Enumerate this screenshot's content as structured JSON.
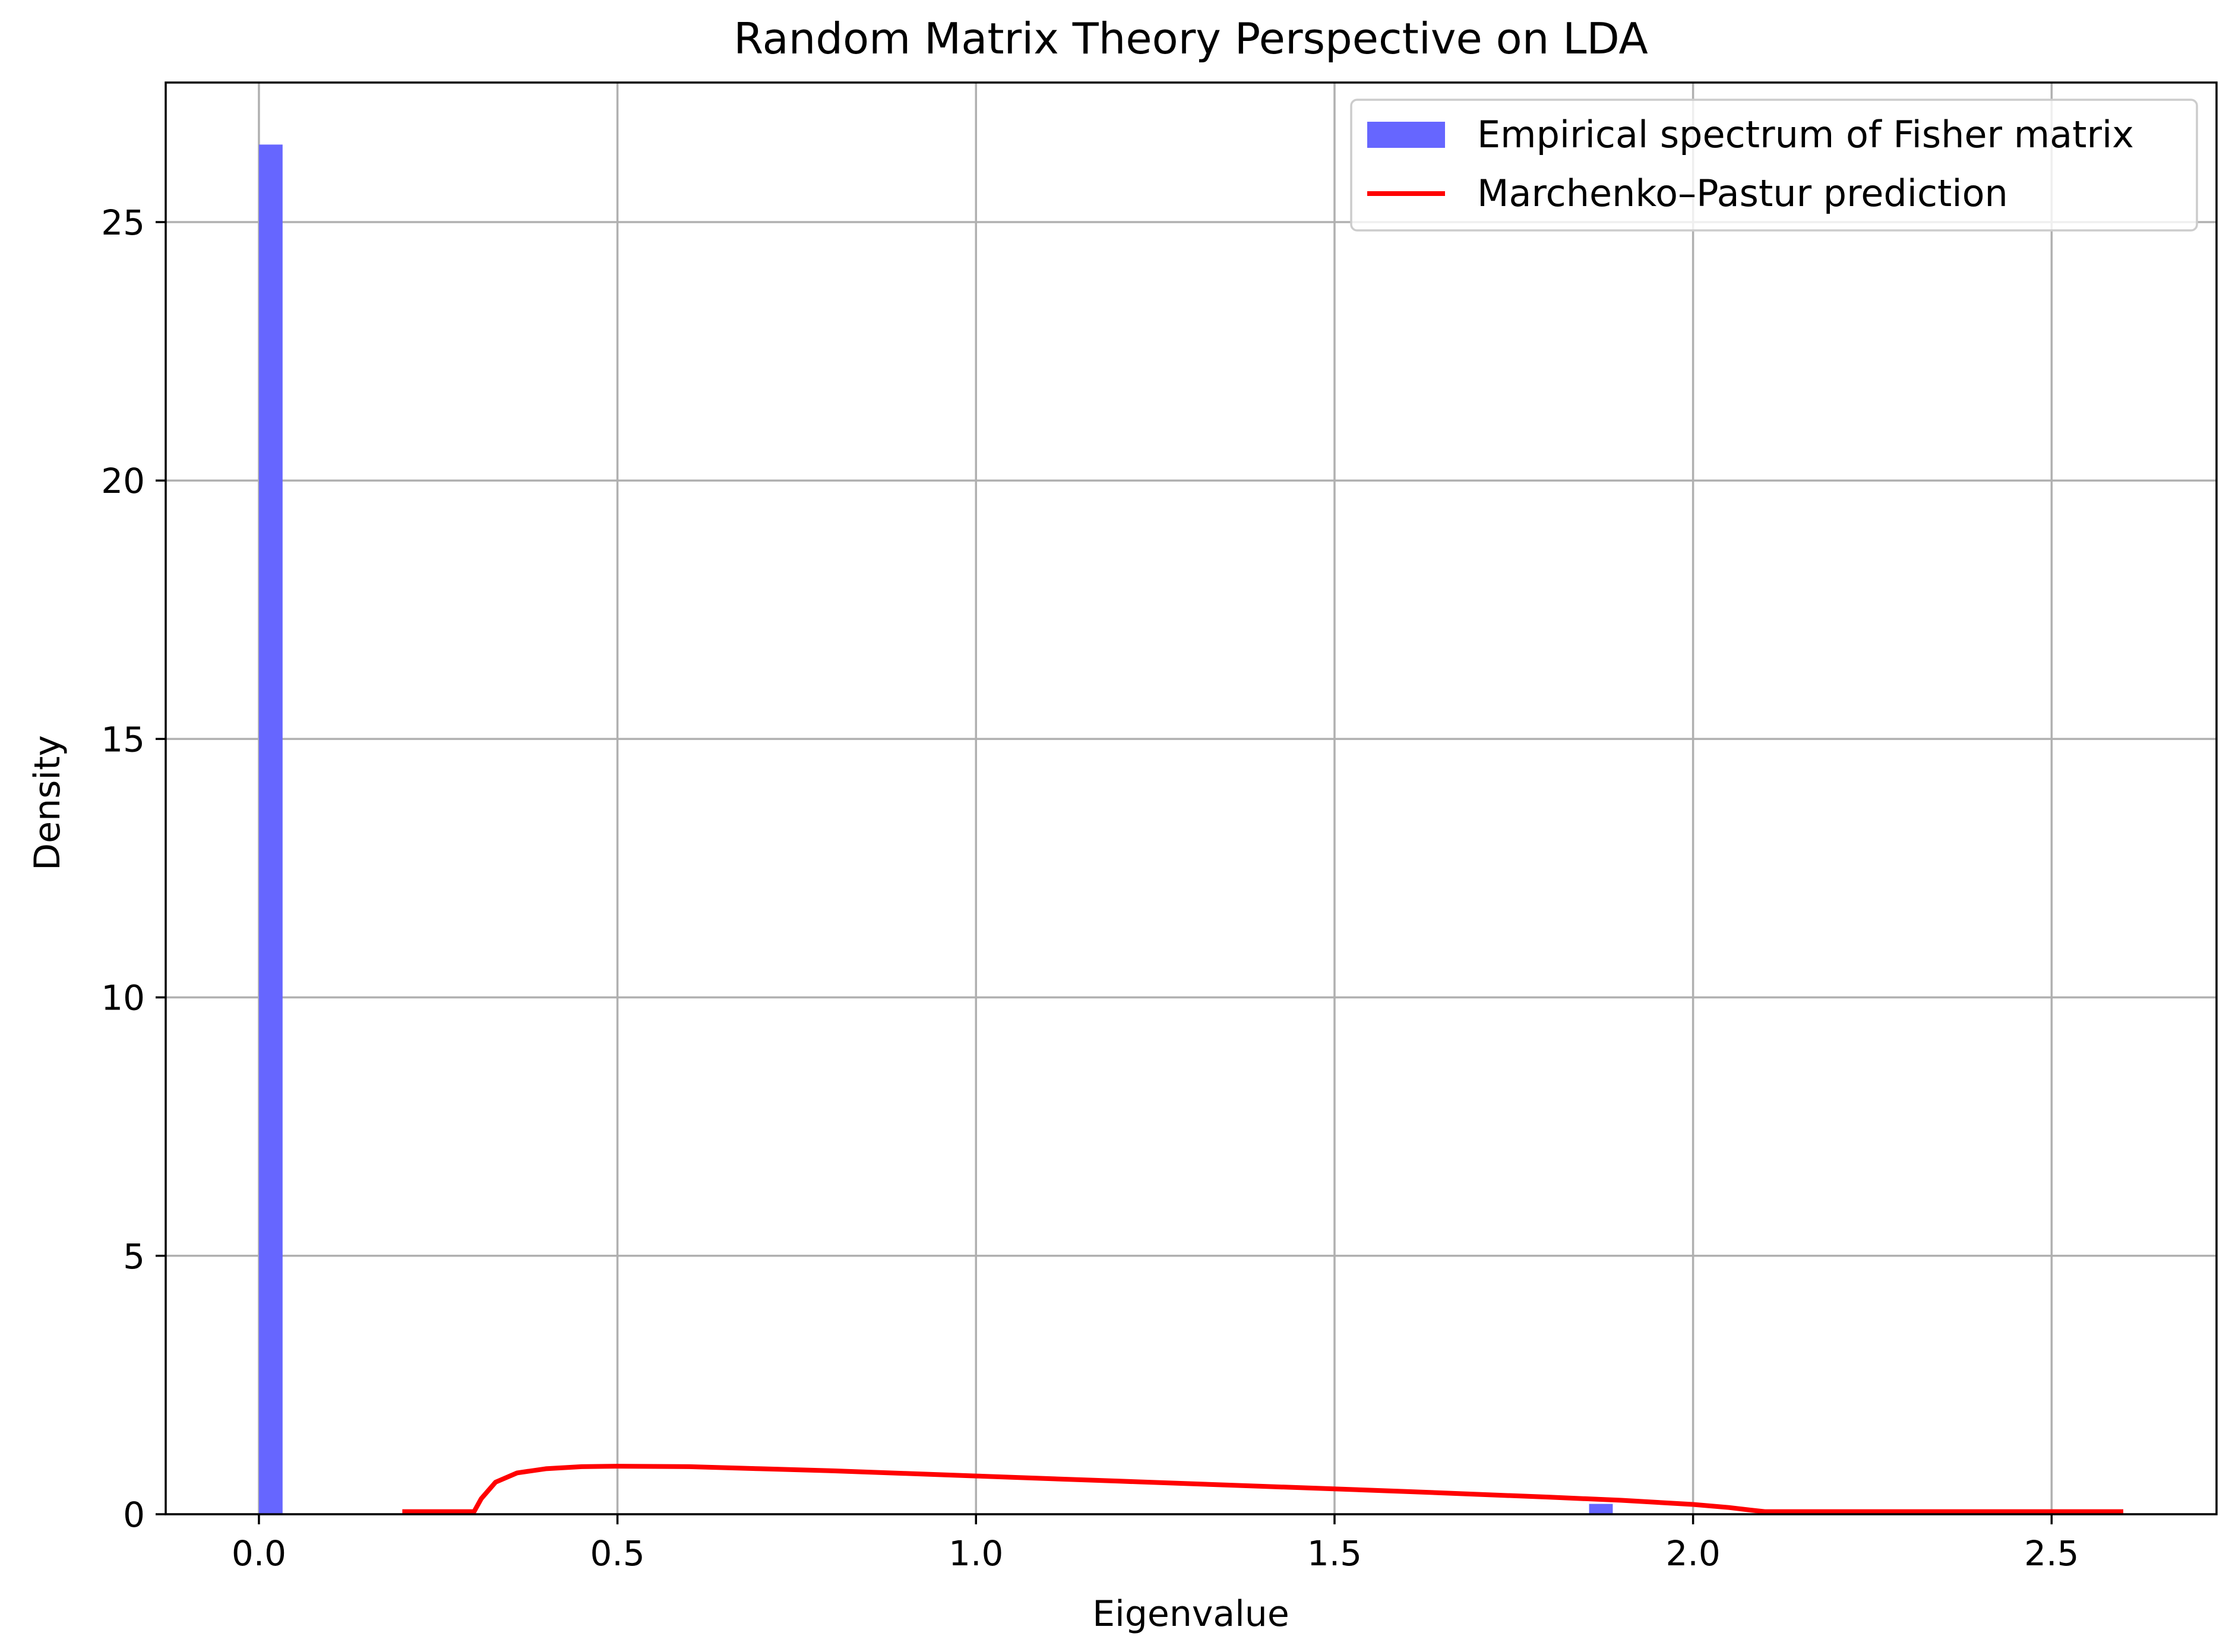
{
  "chart_data": {
    "type": "bar",
    "title": "Random Matrix Theory Perspective on LDA",
    "xlabel": "Eigenvalue",
    "ylabel": "Density",
    "xlim": [
      -0.13,
      2.73
    ],
    "ylim": [
      0,
      27.7
    ],
    "xticks": [
      0.0,
      0.5,
      1.0,
      1.5,
      2.0,
      2.5
    ],
    "xtick_labels": [
      "0.0",
      "0.5",
      "1.0",
      "1.5",
      "2.0",
      "2.5"
    ],
    "yticks": [
      0,
      5,
      10,
      15,
      20,
      25
    ],
    "ytick_labels": [
      "0",
      "5",
      "10",
      "15",
      "20",
      "25"
    ],
    "grid": true,
    "legend_position": "top-right",
    "series": [
      {
        "name": "Empirical spectrum of Fisher matrix",
        "kind": "histogram",
        "color": "#6666ff",
        "bins": [
          {
            "x0": 0.0,
            "x1": 0.033,
            "value": 26.5
          },
          {
            "x0": 1.855,
            "x1": 1.888,
            "value": 0.2
          }
        ]
      },
      {
        "name": "Marchenko–Pastur prediction",
        "kind": "line",
        "color": "#ff0000",
        "x": [
          0.2,
          0.3,
          0.31,
          0.33,
          0.36,
          0.4,
          0.45,
          0.5,
          0.6,
          0.7,
          0.8,
          0.9,
          1.0,
          1.2,
          1.4,
          1.6,
          1.8,
          1.9,
          2.0,
          2.05,
          2.08,
          2.1,
          2.2,
          2.6
        ],
        "y": [
          0.05,
          0.05,
          0.3,
          0.62,
          0.8,
          0.88,
          0.92,
          0.93,
          0.92,
          0.88,
          0.84,
          0.79,
          0.74,
          0.64,
          0.54,
          0.44,
          0.33,
          0.27,
          0.19,
          0.13,
          0.08,
          0.05,
          0.05,
          0.05
        ]
      }
    ]
  }
}
